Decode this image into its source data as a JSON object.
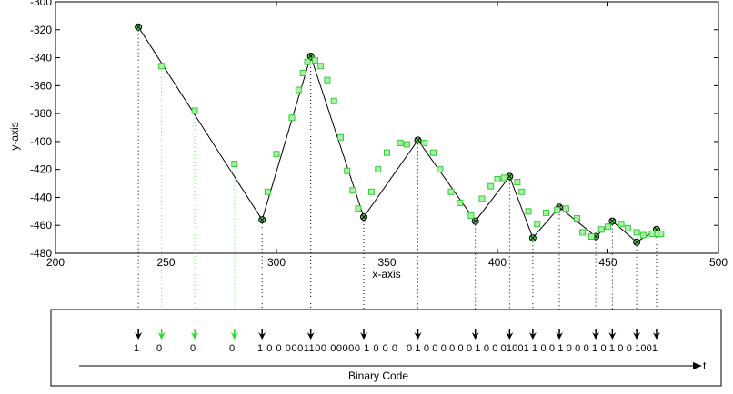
{
  "chart_data": {
    "type": "line",
    "xlabel": "x-axis",
    "ylabel": "y-axis",
    "xlim": [
      200,
      500
    ],
    "ylim": [
      -480,
      -300
    ],
    "xticks": [
      "200",
      "250",
      "300",
      "350",
      "400",
      "450",
      "500"
    ],
    "yticks": [
      "-300",
      "-320",
      "-340",
      "-360",
      "-380",
      "-400",
      "-420",
      "-440",
      "-460",
      "-480"
    ],
    "grid": false,
    "legend": "none",
    "series": [
      {
        "style": "black line with circle-x markers",
        "color": "#000000",
        "x": [
          237.5,
          293.5,
          315.5,
          339.5,
          364,
          390,
          405.5,
          416,
          428,
          444.5,
          452,
          463,
          472
        ],
        "y": [
          -318,
          -456,
          -339,
          -454,
          -399,
          -457,
          -425,
          -469,
          -447,
          -468,
          -457,
          -472,
          -463
        ]
      },
      {
        "style": "green square markers",
        "color": "#44dd44",
        "x": [
          248,
          263,
          281,
          296,
          300,
          307,
          310,
          312,
          314,
          317.5,
          320,
          323,
          326,
          329,
          332,
          334.5,
          337,
          343,
          346,
          350,
          356,
          359,
          367,
          371,
          374,
          379,
          383,
          388,
          393,
          397,
          400,
          403,
          409,
          411,
          414,
          418,
          422,
          427,
          431,
          436,
          438.5,
          442.5,
          447,
          450,
          456,
          459,
          463,
          466,
          470,
          472.5,
          474
        ],
        "y": [
          -346,
          -378,
          -416,
          -436,
          -409,
          -383,
          -363,
          -351,
          -343,
          -342,
          -346,
          -356,
          -371,
          -397,
          -421,
          -435,
          -448,
          -436,
          -420,
          -408,
          -401,
          -402,
          -401,
          -408,
          -420,
          -436,
          -444,
          -453,
          -441,
          -432,
          -427,
          -426,
          -429,
          -436,
          -450,
          -459,
          -451,
          -449,
          -448,
          -455,
          -465,
          -468,
          -463,
          -461,
          -459,
          -462,
          -465,
          -467,
          -466,
          -466,
          -466
        ]
      }
    ],
    "arrows": [
      {
        "x": 237.5,
        "color": "#000000"
      },
      {
        "x": 248,
        "color": "#22dd22"
      },
      {
        "x": 263,
        "color": "#22dd22"
      },
      {
        "x": 281,
        "color": "#22dd22"
      },
      {
        "x": 293.5,
        "color": "#000000"
      },
      {
        "x": 315.5,
        "color": "#000000"
      },
      {
        "x": 339.5,
        "color": "#000000"
      },
      {
        "x": 364,
        "color": "#000000"
      },
      {
        "x": 390,
        "color": "#000000"
      },
      {
        "x": 405.5,
        "color": "#000000"
      },
      {
        "x": 416,
        "color": "#000000"
      },
      {
        "x": 428,
        "color": "#000000"
      },
      {
        "x": 444.5,
        "color": "#000000"
      },
      {
        "x": 452,
        "color": "#000000"
      },
      {
        "x": 463,
        "color": "#000000"
      },
      {
        "x": 472,
        "color": "#000000"
      }
    ],
    "binary_code": {
      "sequence": [
        "1",
        "0",
        "0",
        "0",
        "1 0 0 0001100 00000 1 0 0 0",
        "0 1 0 0 0 0 0 0 1 0 0 01001 1 0 0 1 0 0 0 1 0 1 0 0 1001"
      ],
      "label": "Binary Code",
      "axis_end_label": "t"
    }
  }
}
